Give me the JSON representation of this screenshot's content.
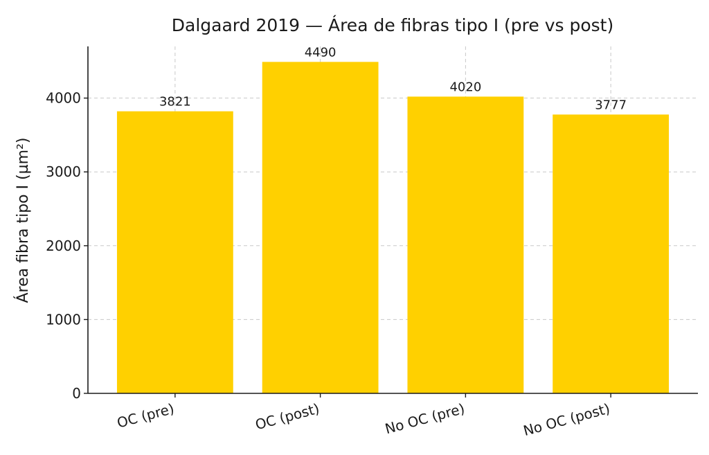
{
  "chart_data": {
    "type": "bar",
    "title": "Dalgaard 2019 — Área de fibras tipo I (pre vs post)",
    "xlabel": "",
    "ylabel": "Área fibra tipo I (µm²)",
    "categories": [
      "OC (pre)",
      "OC (post)",
      "No OC (pre)",
      "No OC (post)"
    ],
    "values": [
      3821,
      4490,
      4020,
      3777
    ],
    "data_labels": [
      "3821",
      "4490",
      "4020",
      "3777"
    ],
    "ylim": [
      0,
      4700
    ],
    "yticks": [
      0,
      1000,
      2000,
      3000,
      4000
    ],
    "bar_color": "#FFD000",
    "grid": true,
    "legend": "none"
  }
}
